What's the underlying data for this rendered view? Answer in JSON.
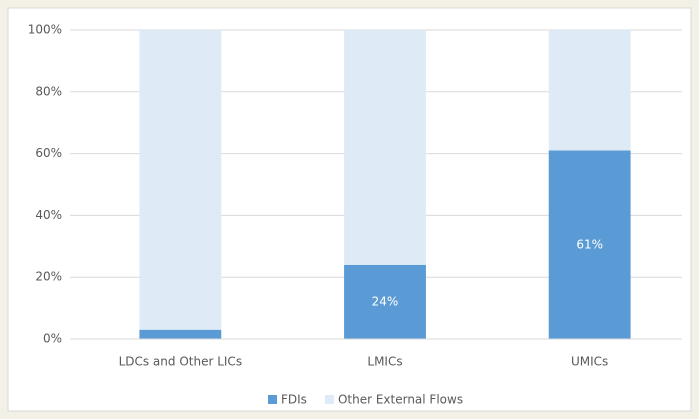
{
  "chart_data": {
    "type": "bar",
    "stacked": true,
    "categories": [
      "LDCs and Other LICs",
      "LMICs",
      "UMICs"
    ],
    "series": [
      {
        "name": "FDIs",
        "color": "#5b9bd5",
        "values": [
          3,
          24,
          61
        ],
        "value_labels": [
          "3%",
          "24%",
          "61%"
        ]
      },
      {
        "name": "Other External Flows",
        "color": "#deebf7",
        "values": [
          97,
          76,
          39
        ]
      }
    ],
    "ylim": [
      0,
      100
    ],
    "yticks": [
      {
        "value": 0,
        "label": "0%"
      },
      {
        "value": 20,
        "label": "20%"
      },
      {
        "value": 40,
        "label": "40%"
      },
      {
        "value": 60,
        "label": "60%"
      },
      {
        "value": 80,
        "label": "80%"
      },
      {
        "value": 100,
        "label": "100%"
      }
    ],
    "grid": true,
    "legend": "bottom"
  }
}
